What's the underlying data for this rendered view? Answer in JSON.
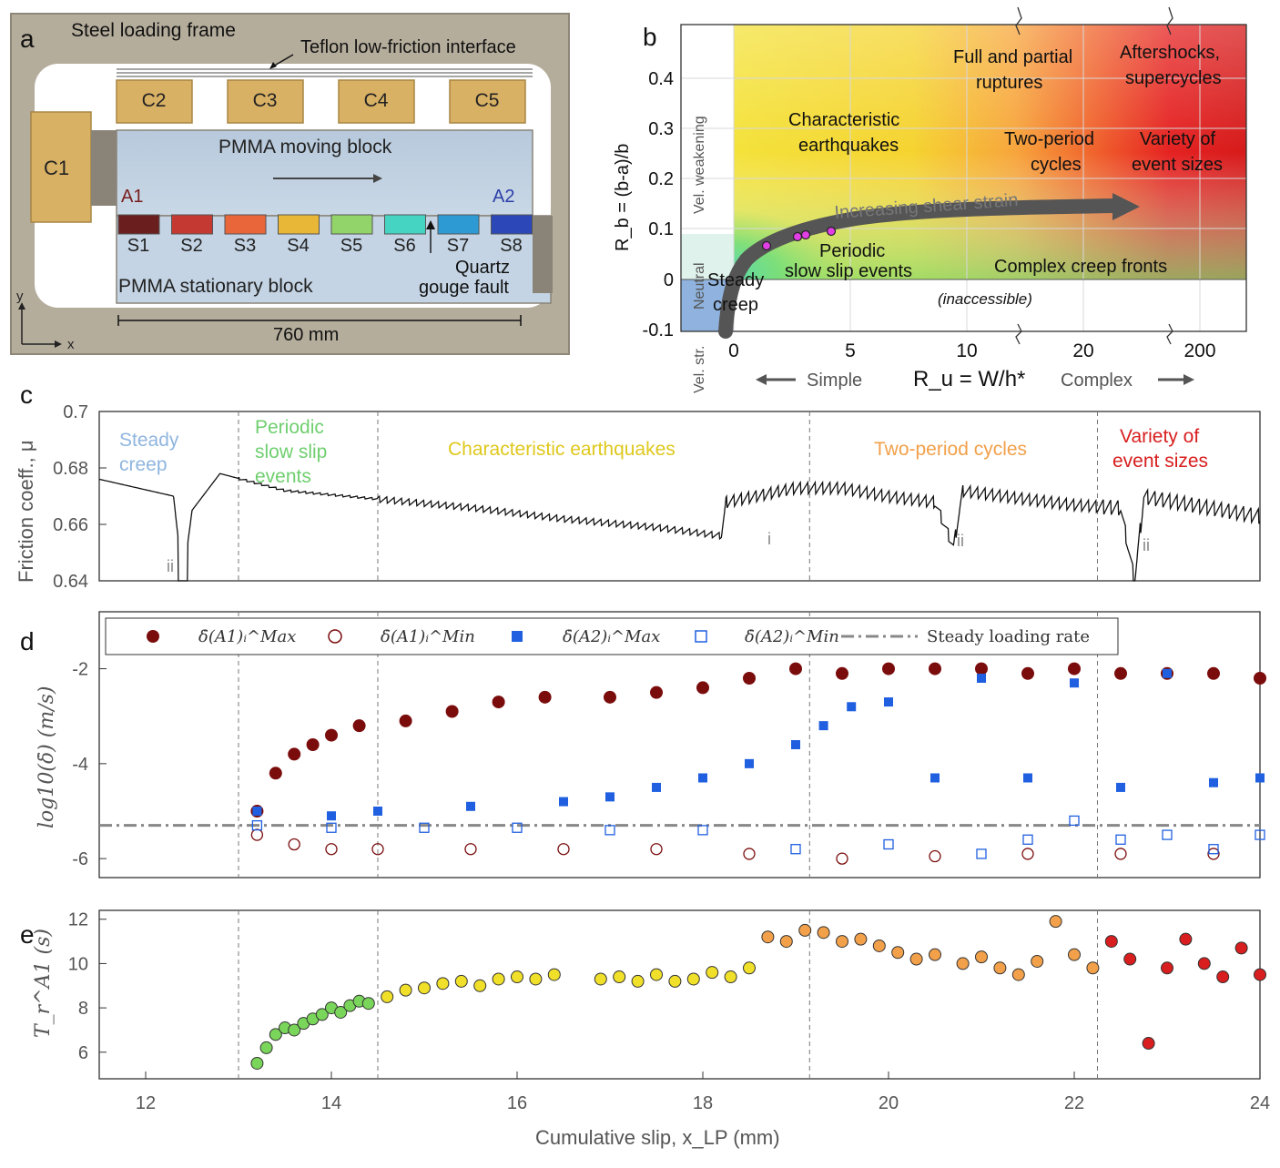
{
  "panel_letters": {
    "a": "a",
    "b": "b",
    "c": "c",
    "d": "d",
    "e": "e"
  },
  "panel_a": {
    "frame_label": "Steel loading frame",
    "teflon_label": "Teflon low-friction interface",
    "moving_block_label": "PMMA moving block",
    "stationary_block_label": "PMMA stationary block",
    "gouge_label_1": "Quartz",
    "gouge_label_2": "gouge fault",
    "length_label": "760 mm",
    "axis_y": "y",
    "axis_x": "x",
    "a1": "A1",
    "a2": "A2",
    "cylinders": [
      "C2",
      "C3",
      "C4",
      "C5"
    ],
    "c1": "C1",
    "sensors": [
      "S1",
      "S2",
      "S3",
      "S4",
      "S5",
      "S6",
      "S7",
      "S8"
    ],
    "sensor_colors": [
      "#6b1e1e",
      "#c43a33",
      "#e8663a",
      "#e8b737",
      "#93d46a",
      "#45d3c2",
      "#2e9ad3",
      "#2c47b8"
    ]
  },
  "panel_b": {
    "ylabel": "R_b = (b-a)/b",
    "xlabel": "R_u = W/h*",
    "simple": "Simple",
    "complex": "Complex",
    "yticks": [
      "0.4",
      "0.3",
      "0.2",
      "0.1",
      "0",
      "-0.1"
    ],
    "xticks": [
      "0",
      "5",
      "10",
      "20",
      "200"
    ],
    "vel_weakening": "Vel. weakening",
    "neutral": "Neutral",
    "vel_str": "Vel. str.",
    "char_eq_1": "Characteristic",
    "char_eq_2": "earthquakes",
    "full_partial_1": "Full and partial",
    "full_partial_2": "ruptures",
    "aftershocks_1": "Aftershocks,",
    "aftershocks_2": "supercycles",
    "two_period_1": "Two-period",
    "two_period_2": "cycles",
    "variety_1": "Variety of",
    "variety_2": "event sizes",
    "increasing": "Increasing shear strain",
    "periodic_1": "Periodic",
    "periodic_2": "slow slip events",
    "complex_creep": "Complex creep fronts",
    "steady_1": "Steady",
    "steady_2": "creep",
    "inaccessible": "(inaccessible)"
  },
  "panel_c": {
    "ylabel": "Friction coeff., μ",
    "yticks": [
      "0.7",
      "0.68",
      "0.66",
      "0.64"
    ],
    "regimes": [
      {
        "l1": "Steady",
        "l2": "creep",
        "l3": "",
        "color": "#8fb5df"
      },
      {
        "l1": "Periodic",
        "l2": "slow slip",
        "l3": "events",
        "color": "#6fcf6f"
      },
      {
        "l1": "Characteristic earthquakes",
        "l2": "",
        "l3": "",
        "color": "#dfc81c"
      },
      {
        "l1": "Two-period cycles",
        "l2": "",
        "l3": "",
        "color": "#f2a04a"
      },
      {
        "l1": "Variety of",
        "l2": "event sizes",
        "l3": "",
        "color": "#d81e1e"
      }
    ],
    "markers": [
      "ii",
      "i",
      "ii",
      "ii"
    ]
  },
  "panel_d": {
    "ylabel": "log10(δ̇) (m/s)",
    "yticks": [
      "-2",
      "-4",
      "-6"
    ],
    "legend": {
      "a1max": "δ̇(A1)ᵢ^Max",
      "a1min": "δ̇(A1)ᵢ^Min",
      "a2max": "δ̇(A2)ᵢ^Max",
      "a2min": "δ̇(A2)ᵢ^Min",
      "steady": "Steady loading rate"
    }
  },
  "panel_e": {
    "ylabel": "T_r^A1 (s)",
    "yticks": [
      "12",
      "10",
      "8",
      "6"
    ]
  },
  "shared_x": {
    "xlabel": "Cumulative slip, x_LP (mm)",
    "xticks": [
      "12",
      "14",
      "16",
      "18",
      "20",
      "22",
      "24"
    ]
  },
  "chart_data": [
    {
      "type": "line",
      "panel": "c",
      "x_range": [
        11.5,
        24
      ],
      "y_range": [
        0.64,
        0.7
      ],
      "regime_boundaries_x": [
        13.0,
        14.5,
        19.15,
        22.25
      ],
      "series": [
        {
          "values": [
            [
              11.5,
              0.676
            ],
            [
              12.3,
              0.67
            ],
            [
              12.4,
              0.64
            ],
            [
              12.5,
              0.665
            ],
            [
              12.8,
              0.678
            ],
            [
              13.5,
              0.672
            ],
            [
              14.5,
              0.669
            ],
            [
              15.5,
              0.666
            ],
            [
              16.5,
              0.662
            ],
            [
              17.5,
              0.659
            ],
            [
              18.2,
              0.656
            ],
            [
              18.25,
              0.668
            ],
            [
              19.0,
              0.673
            ],
            [
              19.5,
              0.673
            ],
            [
              20.0,
              0.67
            ],
            [
              20.5,
              0.668
            ],
            [
              20.7,
              0.652
            ],
            [
              20.8,
              0.672
            ],
            [
              21.5,
              0.669
            ],
            [
              22.0,
              0.667
            ],
            [
              22.5,
              0.666
            ],
            [
              22.65,
              0.64
            ],
            [
              22.75,
              0.67
            ],
            [
              24.0,
              0.663
            ]
          ]
        }
      ]
    },
    {
      "type": "scatter",
      "panel": "d",
      "x_range": [
        11.5,
        24
      ],
      "y_range": [
        -6.4,
        -0.8
      ],
      "steady_loading_rate": -5.3,
      "series": [
        {
          "key": "a1max",
          "values": [
            [
              13.2,
              -5.0
            ],
            [
              13.4,
              -4.2
            ],
            [
              13.6,
              -3.8
            ],
            [
              13.8,
              -3.6
            ],
            [
              14.0,
              -3.4
            ],
            [
              14.3,
              -3.2
            ],
            [
              14.8,
              -3.1
            ],
            [
              15.3,
              -2.9
            ],
            [
              15.8,
              -2.7
            ],
            [
              16.3,
              -2.6
            ],
            [
              17.0,
              -2.6
            ],
            [
              17.5,
              -2.5
            ],
            [
              18.0,
              -2.4
            ],
            [
              18.5,
              -2.2
            ],
            [
              19.0,
              -2.0
            ],
            [
              19.5,
              -2.1
            ],
            [
              20.0,
              -2.0
            ],
            [
              20.5,
              -2.0
            ],
            [
              21.0,
              -2.0
            ],
            [
              21.5,
              -2.1
            ],
            [
              22.0,
              -2.0
            ],
            [
              22.5,
              -2.1
            ],
            [
              23.0,
              -2.1
            ],
            [
              23.5,
              -2.1
            ],
            [
              24.0,
              -2.2
            ]
          ]
        },
        {
          "key": "a1min",
          "values": [
            [
              13.2,
              -5.5
            ],
            [
              13.6,
              -5.7
            ],
            [
              14.0,
              -5.8
            ],
            [
              14.5,
              -5.8
            ],
            [
              15.5,
              -5.8
            ],
            [
              16.5,
              -5.8
            ],
            [
              17.5,
              -5.8
            ],
            [
              18.5,
              -5.9
            ],
            [
              19.5,
              -6.0
            ],
            [
              20.5,
              -5.95
            ],
            [
              21.5,
              -5.9
            ],
            [
              22.5,
              -5.9
            ],
            [
              23.5,
              -5.9
            ]
          ]
        },
        {
          "key": "a2max",
          "values": [
            [
              13.2,
              -5.0
            ],
            [
              14.0,
              -5.1
            ],
            [
              14.5,
              -5.0
            ],
            [
              15.5,
              -4.9
            ],
            [
              16.5,
              -4.8
            ],
            [
              17.0,
              -4.7
            ],
            [
              17.5,
              -4.5
            ],
            [
              18.0,
              -4.3
            ],
            [
              18.5,
              -4.0
            ],
            [
              19.0,
              -3.6
            ],
            [
              19.3,
              -3.2
            ],
            [
              19.6,
              -2.8
            ],
            [
              20.0,
              -2.7
            ],
            [
              20.5,
              -4.3
            ],
            [
              21.0,
              -2.2
            ],
            [
              21.5,
              -4.3
            ],
            [
              22.0,
              -2.3
            ],
            [
              22.5,
              -4.5
            ],
            [
              23.0,
              -2.1
            ],
            [
              23.5,
              -4.4
            ],
            [
              24.0,
              -4.3
            ]
          ]
        },
        {
          "key": "a2min",
          "values": [
            [
              13.2,
              -5.3
            ],
            [
              14.0,
              -5.35
            ],
            [
              15.0,
              -5.35
            ],
            [
              16.0,
              -5.35
            ],
            [
              17.0,
              -5.4
            ],
            [
              18.0,
              -5.4
            ],
            [
              19.0,
              -5.8
            ],
            [
              20.0,
              -5.7
            ],
            [
              21.0,
              -5.9
            ],
            [
              21.5,
              -5.6
            ],
            [
              22.0,
              -5.2
            ],
            [
              22.5,
              -5.6
            ],
            [
              23.0,
              -5.5
            ],
            [
              23.5,
              -5.8
            ],
            [
              24.0,
              -5.5
            ]
          ]
        }
      ]
    },
    {
      "type": "scatter",
      "panel": "e",
      "x_range": [
        11.5,
        24
      ],
      "y_range": [
        4.8,
        12.4
      ],
      "values": [
        [
          13.2,
          5.5
        ],
        [
          13.3,
          6.2
        ],
        [
          13.4,
          6.8
        ],
        [
          13.5,
          7.1
        ],
        [
          13.6,
          7.0
        ],
        [
          13.7,
          7.3
        ],
        [
          13.8,
          7.5
        ],
        [
          13.9,
          7.7
        ],
        [
          14.0,
          8.0
        ],
        [
          14.1,
          7.8
        ],
        [
          14.2,
          8.1
        ],
        [
          14.3,
          8.3
        ],
        [
          14.4,
          8.2
        ],
        [
          14.6,
          8.5
        ],
        [
          14.8,
          8.8
        ],
        [
          15.0,
          8.9
        ],
        [
          15.2,
          9.1
        ],
        [
          15.4,
          9.2
        ],
        [
          15.6,
          9.0
        ],
        [
          15.8,
          9.3
        ],
        [
          16.0,
          9.4
        ],
        [
          16.2,
          9.3
        ],
        [
          16.4,
          9.5
        ],
        [
          16.9,
          9.3
        ],
        [
          17.1,
          9.4
        ],
        [
          17.3,
          9.2
        ],
        [
          17.5,
          9.5
        ],
        [
          17.7,
          9.2
        ],
        [
          17.9,
          9.3
        ],
        [
          18.1,
          9.6
        ],
        [
          18.3,
          9.4
        ],
        [
          18.5,
          9.8
        ],
        [
          18.7,
          11.2
        ],
        [
          18.9,
          11.0
        ],
        [
          19.1,
          11.5
        ],
        [
          19.3,
          11.4
        ],
        [
          19.5,
          11.0
        ],
        [
          19.7,
          11.1
        ],
        [
          19.9,
          10.8
        ],
        [
          20.1,
          10.5
        ],
        [
          20.3,
          10.2
        ],
        [
          20.5,
          10.4
        ],
        [
          20.8,
          10.0
        ],
        [
          21.0,
          10.3
        ],
        [
          21.2,
          9.8
        ],
        [
          21.4,
          9.5
        ],
        [
          21.6,
          10.1
        ],
        [
          21.8,
          11.9
        ],
        [
          22.0,
          10.4
        ],
        [
          22.2,
          9.8
        ],
        [
          22.4,
          11.0
        ],
        [
          22.6,
          10.2
        ],
        [
          22.8,
          6.4
        ],
        [
          23.0,
          9.8
        ],
        [
          23.2,
          11.1
        ],
        [
          23.4,
          10.0
        ],
        [
          23.6,
          9.4
        ],
        [
          23.8,
          10.7
        ],
        [
          24.0,
          9.5
        ]
      ]
    }
  ]
}
